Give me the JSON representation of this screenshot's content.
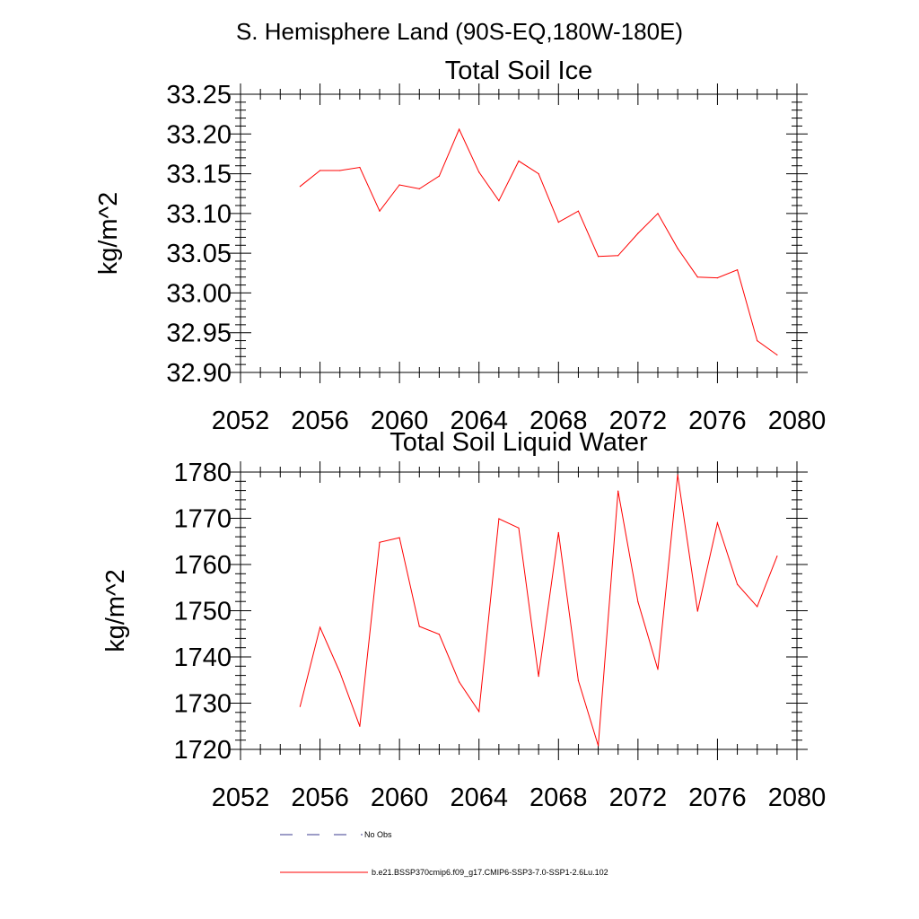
{
  "page": {
    "header": "S. Hemisphere Land (90S-EQ,180W-180E)"
  },
  "chart_data": [
    {
      "type": "line",
      "title": "Total Soil Ice",
      "xlabel": "",
      "ylabel": "kg/m^2",
      "xlim": [
        2052,
        2080
      ],
      "ylim": [
        32.9,
        33.25
      ],
      "xticks": [
        2052,
        2056,
        2060,
        2064,
        2068,
        2072,
        2076,
        2080
      ],
      "yticks": [
        32.9,
        32.95,
        33.0,
        33.05,
        33.1,
        33.15,
        33.2,
        33.25
      ],
      "ytick_labels": [
        "32.90",
        "32.95",
        "33.00",
        "33.05",
        "33.10",
        "33.15",
        "33.20",
        "33.25"
      ],
      "grid": false,
      "series": [
        {
          "name": "b.e21.BSSP370cmip6.f09_g17.CMIP6-SSP3-7.0-SSP1-2.6Lu.102",
          "color": "#ff0000",
          "x": [
            2055,
            2056,
            2057,
            2058,
            2059,
            2060,
            2061,
            2062,
            2063,
            2064,
            2065,
            2066,
            2067,
            2068,
            2069,
            2070,
            2071,
            2072,
            2073,
            2074,
            2075,
            2076,
            2077,
            2078,
            2079
          ],
          "y": [
            33.134,
            33.154,
            33.154,
            33.158,
            33.103,
            33.136,
            33.131,
            33.147,
            33.206,
            33.152,
            33.116,
            33.166,
            33.15,
            33.089,
            33.103,
            33.046,
            33.047,
            33.075,
            33.1,
            33.056,
            33.02,
            33.019,
            33.029,
            32.94,
            32.922
          ]
        }
      ]
    },
    {
      "type": "line",
      "title": "Total Soil Liquid Water",
      "xlabel": "",
      "ylabel": "kg/m^2",
      "xlim": [
        2052,
        2080
      ],
      "ylim": [
        1720,
        1780
      ],
      "xticks": [
        2052,
        2056,
        2060,
        2064,
        2068,
        2072,
        2076,
        2080
      ],
      "yticks": [
        1720,
        1730,
        1740,
        1750,
        1760,
        1770,
        1780
      ],
      "ytick_labels": [
        "1720",
        "1730",
        "1740",
        "1750",
        "1760",
        "1770",
        "1780"
      ],
      "grid": false,
      "series": [
        {
          "name": "b.e21.BSSP370cmip6.f09_g17.CMIP6-SSP3-7.0-SSP1-2.6Lu.102",
          "color": "#ff0000",
          "x": [
            2055,
            2056,
            2057,
            2058,
            2059,
            2060,
            2061,
            2062,
            2063,
            2064,
            2065,
            2066,
            2067,
            2068,
            2069,
            2070,
            2071,
            2072,
            2073,
            2074,
            2075,
            2076,
            2077,
            2078,
            2079
          ],
          "y": [
            1729.3,
            1746.4,
            1736.7,
            1725.0,
            1764.8,
            1765.8,
            1746.6,
            1744.9,
            1734.6,
            1728.2,
            1769.9,
            1767.9,
            1735.8,
            1766.9,
            1734.9,
            1720.8,
            1775.9,
            1751.9,
            1737.3,
            1779.4,
            1749.9,
            1769.0,
            1755.7,
            1750.9,
            1761.8
          ]
        }
      ]
    }
  ],
  "legend": {
    "placement": "bottom",
    "items": [
      {
        "label": "No Obs",
        "color": "#3b3b8f",
        "dash": true
      },
      {
        "label": "b.e21.BSSP370cmip6.f09_g17.CMIP6-SSP3-7.0-SSP1-2.6Lu.102",
        "color": "#ff0000",
        "dash": false
      }
    ]
  }
}
